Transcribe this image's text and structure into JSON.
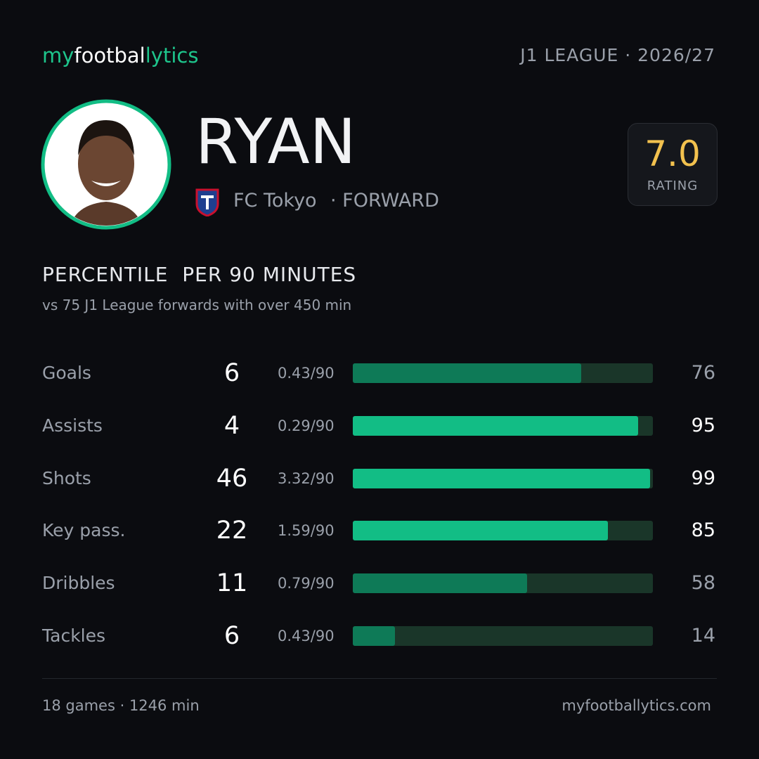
{
  "header": {
    "logo": [
      "my",
      "footbal",
      "lytics"
    ],
    "league": "J1 LEAGUE · 2026/27"
  },
  "player": {
    "name": "RYAN",
    "club": "FC Tokyo",
    "position": "· FORWARD",
    "rating": "7.0",
    "rating_label": "RATING"
  },
  "section": {
    "title": "PERCENTILE  PER 90 MINUTES",
    "subtitle": "vs 75 J1 League forwards with over 450 min"
  },
  "stats": {
    "xlim": [
      0,
      100
    ],
    "track_color": "#1a3629",
    "rows": [
      {
        "label": "Goals",
        "count": 6,
        "per90": "0.43/90",
        "percentile": 76,
        "color": "#0e7a57"
      },
      {
        "label": "Assists",
        "count": 4,
        "per90": "0.29/90",
        "percentile": 95,
        "color": "#12bd85"
      },
      {
        "label": "Shots",
        "count": 46,
        "per90": "3.32/90",
        "percentile": 99,
        "color": "#12bd85"
      },
      {
        "label": "Key pass.",
        "count": 22,
        "per90": "1.59/90",
        "percentile": 85,
        "color": "#12bd85"
      },
      {
        "label": "Dribbles",
        "count": 11,
        "per90": "0.79/90",
        "percentile": 58,
        "color": "#0e7a57"
      },
      {
        "label": "Tackles",
        "count": 6,
        "per90": "0.43/90",
        "percentile": 14,
        "color": "#0e7a57"
      }
    ]
  },
  "footer": {
    "left": "18 games · 1246 min",
    "right": "myfootballytics.com"
  }
}
